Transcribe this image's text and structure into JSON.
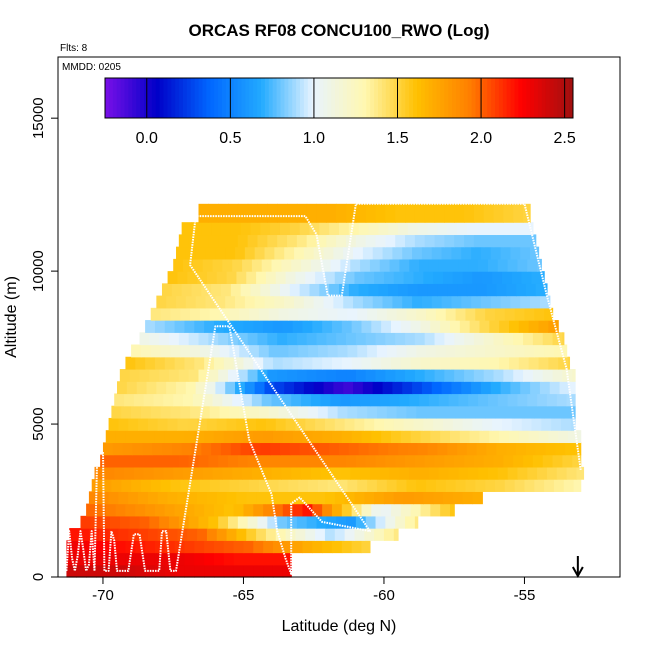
{
  "chart_data": {
    "type": "heatmap",
    "title": "ORCAS RF08 CONCU100_RWO (Log)",
    "annotations": {
      "flights": "Flts: 8",
      "date": "MMDD: 0205"
    },
    "xlabel": "Latitude (deg N)",
    "ylabel": "Altitude (m)",
    "xlim": [
      -71.6,
      -51.6
    ],
    "ylim": [
      0,
      17000
    ],
    "x_ticks": [
      -70,
      -65,
      -60,
      -55
    ],
    "x_tick_labels": [
      "-70",
      "-65",
      "-60",
      "-55"
    ],
    "y_ticks": [
      0,
      5000,
      10000,
      15000
    ],
    "y_tick_labels": [
      "0",
      "5000",
      "10000",
      "15000"
    ],
    "colorbar": {
      "range": [
        -0.25,
        2.55
      ],
      "ticks": [
        0.0,
        0.5,
        1.0,
        1.5,
        2.0,
        2.5
      ],
      "tick_labels": [
        "0.0",
        "0.5",
        "1.0",
        "1.5",
        "2.0",
        "2.5"
      ],
      "colors": [
        "#7a10e8",
        "#0000c8",
        "#0066ff",
        "#22aaff",
        "#e8f4ff",
        "#fff7b0",
        "#ffc000",
        "#ff8000",
        "#ff0000",
        "#a01010"
      ]
    },
    "grid": false,
    "boundary": {
      "left_edge": [
        [
          -71.3,
          0
        ],
        [
          -71.3,
          1500
        ],
        [
          -70.6,
          2300
        ],
        [
          -70.3,
          3500
        ],
        [
          -70.0,
          4200
        ],
        [
          -69.7,
          5700
        ],
        [
          -69.4,
          6800
        ],
        [
          -68.7,
          7900
        ],
        [
          -68.3,
          8800
        ],
        [
          -67.7,
          9800
        ],
        [
          -67.3,
          10800
        ],
        [
          -67.2,
          11600
        ],
        [
          -66.6,
          11900
        ],
        [
          -63.0,
          11900
        ]
      ],
      "right_edge": [
        [
          -63.0,
          11900
        ],
        [
          -61.0,
          12200
        ],
        [
          -54.8,
          12200
        ],
        [
          -54.3,
          10500
        ],
        [
          -53.6,
          8500
        ],
        [
          -53.2,
          6500
        ],
        [
          -53.0,
          4600
        ],
        [
          -52.9,
          3300
        ],
        [
          -55.3,
          2900
        ],
        [
          -57.0,
          2500
        ],
        [
          -59.2,
          1500
        ],
        [
          -61.2,
          1000
        ],
        [
          -63.3,
          700
        ],
        [
          -63.3,
          0
        ]
      ]
    },
    "layers": [
      {
        "alt_bottom": 0,
        "alt_top": 400,
        "lat_start": -71.3,
        "lat_end": -63.3,
        "values": [
          2.4,
          2.4,
          2.3,
          2.3,
          2.3
        ]
      },
      {
        "alt_bottom": 400,
        "alt_top": 800,
        "lat_start": -71.3,
        "lat_end": -63.3,
        "values": [
          2.3,
          2.3,
          2.3,
          2.2,
          2.2
        ]
      },
      {
        "alt_bottom": 800,
        "alt_top": 1200,
        "lat_start": -71.3,
        "lat_end": -60.5,
        "values": [
          2.3,
          2.2,
          2.1,
          2.0,
          1.7,
          1.5
        ]
      },
      {
        "alt_bottom": 1200,
        "alt_top": 1600,
        "lat_start": -71.2,
        "lat_end": -59.5,
        "values": [
          2.2,
          2.1,
          2.0,
          1.4,
          0.9,
          1.4
        ]
      },
      {
        "alt_bottom": 1600,
        "alt_top": 2000,
        "lat_start": -70.8,
        "lat_end": -58.8,
        "values": [
          2.1,
          2.0,
          1.6,
          0.8,
          0.6,
          1.4
        ]
      },
      {
        "alt_bottom": 2000,
        "alt_top": 2400,
        "lat_start": -70.6,
        "lat_end": -57.5,
        "values": [
          2.0,
          1.8,
          1.6,
          2.2,
          1.0,
          1.6
        ]
      },
      {
        "alt_bottom": 2400,
        "alt_top": 2800,
        "lat_start": -70.5,
        "lat_end": -56.5,
        "values": [
          1.9,
          1.7,
          1.6,
          1.6,
          1.8,
          1.7
        ]
      },
      {
        "alt_bottom": 2800,
        "alt_top": 3200,
        "lat_start": -70.4,
        "lat_end": -53.0,
        "values": [
          1.8,
          1.6,
          1.5,
          1.4,
          1.6,
          1.5,
          1.3
        ]
      },
      {
        "alt_bottom": 3200,
        "alt_top": 3600,
        "lat_start": -70.3,
        "lat_end": -52.9,
        "values": [
          1.9,
          1.8,
          1.7,
          1.6,
          1.7,
          1.6,
          1.4
        ]
      },
      {
        "alt_bottom": 3600,
        "alt_top": 4000,
        "lat_start": -70.1,
        "lat_end": -53.0,
        "values": [
          2.0,
          2.0,
          1.9,
          1.9,
          1.8,
          1.7,
          1.5
        ]
      },
      {
        "alt_bottom": 4000,
        "alt_top": 4400,
        "lat_start": -70.0,
        "lat_end": -53.0,
        "values": [
          1.8,
          1.9,
          2.1,
          2.0,
          1.9,
          1.7,
          1.6
        ]
      },
      {
        "alt_bottom": 4400,
        "alt_top": 4800,
        "lat_start": -69.9,
        "lat_end": -53.0,
        "values": [
          1.7,
          1.7,
          1.8,
          1.7,
          1.5,
          1.3,
          1.1
        ]
      },
      {
        "alt_bottom": 4800,
        "alt_top": 5200,
        "lat_start": -69.8,
        "lat_end": -53.2,
        "values": [
          1.6,
          1.5,
          1.6,
          1.4,
          1.2,
          1.0,
          0.9
        ]
      },
      {
        "alt_bottom": 5200,
        "alt_top": 5600,
        "lat_start": -69.7,
        "lat_end": -53.2,
        "values": [
          1.5,
          1.4,
          1.2,
          0.9,
          0.8,
          0.8,
          0.8
        ]
      },
      {
        "alt_bottom": 5600,
        "alt_top": 6000,
        "lat_start": -69.6,
        "lat_end": -53.2,
        "values": [
          1.4,
          1.3,
          0.8,
          0.6,
          0.7,
          0.8,
          0.9
        ]
      },
      {
        "alt_bottom": 6000,
        "alt_top": 6400,
        "lat_start": -69.5,
        "lat_end": -53.2,
        "values": [
          1.5,
          1.3,
          0.3,
          -0.1,
          0.3,
          0.7,
          1.0
        ]
      },
      {
        "alt_bottom": 6400,
        "alt_top": 6800,
        "lat_start": -69.4,
        "lat_end": -53.2,
        "values": [
          1.5,
          1.4,
          0.6,
          0.5,
          0.7,
          0.9,
          1.2
        ]
      },
      {
        "alt_bottom": 6800,
        "alt_top": 7200,
        "lat_start": -69.2,
        "lat_end": -53.4,
        "values": [
          1.6,
          1.4,
          0.9,
          1.0,
          1.2,
          1.3,
          1.5
        ]
      },
      {
        "alt_bottom": 7200,
        "alt_top": 7600,
        "lat_start": -69.0,
        "lat_end": -53.5,
        "values": [
          1.3,
          1.1,
          0.8,
          0.9,
          1.1,
          1.2,
          1.3
        ]
      },
      {
        "alt_bottom": 7600,
        "alt_top": 8000,
        "lat_start": -68.7,
        "lat_end": -53.6,
        "values": [
          1.1,
          0.9,
          0.7,
          0.8,
          0.9,
          1.2,
          1.5
        ]
      },
      {
        "alt_bottom": 8000,
        "alt_top": 8400,
        "lat_start": -68.5,
        "lat_end": -53.8,
        "values": [
          0.9,
          0.7,
          0.6,
          0.8,
          1.1,
          1.5,
          1.8
        ]
      },
      {
        "alt_bottom": 8400,
        "alt_top": 8800,
        "lat_start": -68.3,
        "lat_end": -54.0,
        "values": [
          1.4,
          1.3,
          1.1,
          1.0,
          1.2,
          1.5,
          1.6
        ]
      },
      {
        "alt_bottom": 8800,
        "alt_top": 9200,
        "lat_start": -68.1,
        "lat_end": -54.1,
        "values": [
          1.5,
          1.4,
          1.2,
          0.9,
          0.7,
          0.8,
          0.9
        ]
      },
      {
        "alt_bottom": 9200,
        "alt_top": 9600,
        "lat_start": -67.9,
        "lat_end": -54.2,
        "values": [
          1.5,
          1.4,
          1.0,
          0.7,
          0.6,
          0.6,
          0.7
        ]
      },
      {
        "alt_bottom": 9600,
        "alt_top": 10000,
        "lat_start": -67.7,
        "lat_end": -54.3,
        "values": [
          1.6,
          1.5,
          1.1,
          0.8,
          0.7,
          0.6,
          0.7
        ]
      },
      {
        "alt_bottom": 10000,
        "alt_top": 10400,
        "lat_start": -67.5,
        "lat_end": -54.4,
        "values": [
          1.6,
          1.5,
          1.2,
          0.9,
          0.7,
          0.7,
          0.8
        ]
      },
      {
        "alt_bottom": 10400,
        "alt_top": 10800,
        "lat_start": -67.4,
        "lat_end": -54.5,
        "values": [
          1.6,
          1.6,
          1.3,
          1.0,
          0.8,
          0.7,
          0.8
        ]
      },
      {
        "alt_bottom": 10800,
        "alt_top": 11200,
        "lat_start": -67.3,
        "lat_end": -54.6,
        "values": [
          1.6,
          1.6,
          1.4,
          1.1,
          0.9,
          0.8,
          0.8
        ]
      },
      {
        "alt_bottom": 11200,
        "alt_top": 11600,
        "lat_start": -67.2,
        "lat_end": -54.7,
        "values": [
          1.6,
          1.6,
          1.5,
          1.3,
          1.1,
          1.0,
          1.0
        ]
      },
      {
        "alt_bottom": 11600,
        "alt_top": 12200,
        "lat_start": -66.6,
        "lat_end": -54.8,
        "values": [
          1.7,
          1.7,
          1.7,
          1.6,
          1.6,
          1.5
        ]
      }
    ],
    "flight_track": [
      [
        -71.3,
        200
      ],
      [
        -71.2,
        1500
      ],
      [
        -71.1,
        600
      ],
      [
        -71.0,
        200
      ],
      [
        -70.9,
        700
      ],
      [
        -70.8,
        1500
      ],
      [
        -70.7,
        900
      ],
      [
        -70.6,
        200
      ],
      [
        -70.5,
        400
      ],
      [
        -70.4,
        1500
      ],
      [
        -70.3,
        200
      ],
      [
        -70.2,
        4100
      ],
      [
        -70.0,
        4100
      ],
      [
        -69.95,
        200
      ],
      [
        -69.8,
        200
      ],
      [
        -69.7,
        1500
      ],
      [
        -69.6,
        1200
      ],
      [
        -69.5,
        200
      ],
      [
        -69.1,
        200
      ],
      [
        -68.9,
        1400
      ],
      [
        -68.7,
        1400
      ],
      [
        -68.5,
        200
      ],
      [
        -68.3,
        200
      ],
      [
        -68.0,
        200
      ],
      [
        -67.9,
        1500
      ],
      [
        -67.75,
        1500
      ],
      [
        -67.6,
        200
      ],
      [
        -67.4,
        200
      ],
      [
        -66.0,
        8200
      ],
      [
        -65.5,
        8200
      ],
      [
        -64.8,
        4500
      ],
      [
        -64.0,
        2700
      ],
      [
        -63.8,
        1500
      ],
      [
        -63.5,
        600
      ],
      [
        -63.3,
        100
      ],
      [
        -63.3,
        2400
      ],
      [
        -63.0,
        2600
      ],
      [
        -62.2,
        1800
      ],
      [
        -60.5,
        1500
      ],
      [
        -66.9,
        10200
      ],
      [
        -66.7,
        11800
      ],
      [
        -62.8,
        11800
      ],
      [
        -62.4,
        11200
      ],
      [
        -62.0,
        9200
      ],
      [
        -61.5,
        9200
      ],
      [
        -61.0,
        12200
      ],
      [
        -55.0,
        12200
      ],
      [
        -54.2,
        9200
      ],
      [
        -53.5,
        6800
      ],
      [
        -53.0,
        3500
      ]
    ],
    "arrow": {
      "lat": -53.1,
      "direction": "down"
    }
  }
}
